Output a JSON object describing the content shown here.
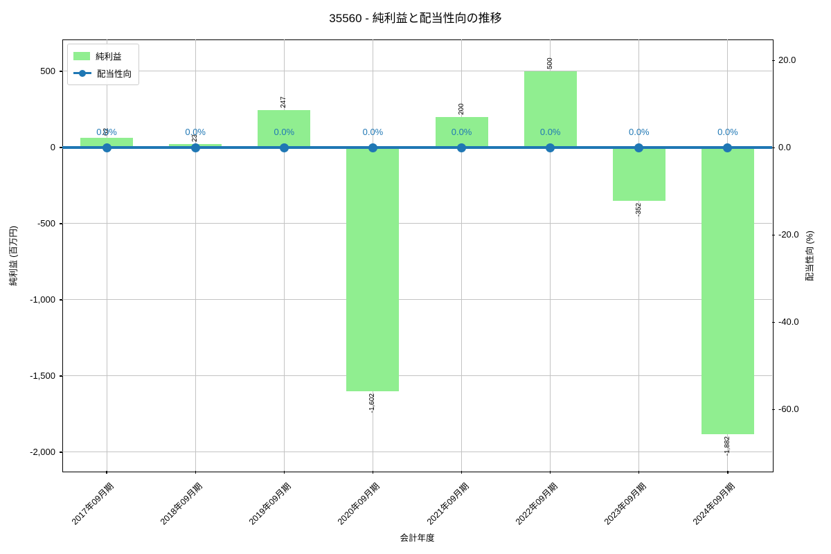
{
  "chart_data": {
    "type": "bar",
    "title": "35560 - 純利益と配当性向の推移",
    "xlabel": "会計年度",
    "ylabel_left": "純利益 (百万円)",
    "ylabel_right": "配当性向 (%)",
    "categories": [
      "2017年09月期",
      "2018年09月期",
      "2019年09月期",
      "2020年09月期",
      "2021年09月期",
      "2022年09月期",
      "2023年09月期",
      "2024年09月期"
    ],
    "series": [
      {
        "name": "純利益",
        "type": "bar",
        "yaxis": "left",
        "color": "#90ee90",
        "values": [
          62,
          23,
          247,
          -1602,
          200,
          500,
          -352,
          -1882
        ],
        "value_labels": [
          "62",
          "23",
          "247",
          "-1,602",
          "200",
          "500",
          "-352",
          "-1,882"
        ]
      },
      {
        "name": "配当性向",
        "type": "line",
        "yaxis": "right",
        "color": "#1f77b4",
        "values": [
          0,
          0,
          0,
          0,
          0,
          0,
          0,
          0
        ],
        "value_labels": [
          "0.0%",
          "0.0%",
          "0.0%",
          "0.0%",
          "0.0%",
          "0.0%",
          "0.0%",
          "0.0%"
        ]
      }
    ],
    "ylim_left": [
      -2123,
      709
    ],
    "ylim_right": [
      -74.1,
      24.8
    ],
    "yticks_left": {
      "values": [
        500,
        0,
        -500,
        -1000,
        -1500,
        -2000
      ],
      "labels": [
        "500",
        "0",
        "-500",
        "-1,000",
        "-1,500",
        "-2,000"
      ]
    },
    "yticks_right": {
      "values": [
        20,
        0,
        -20,
        -40,
        -60
      ],
      "labels": [
        "20.0",
        "0.0",
        "-20.0",
        "-40.0",
        "-60.0"
      ]
    },
    "grid": true,
    "legend_position": "upper left",
    "colors": {
      "bar": "#90ee90",
      "line": "#1f77b4",
      "grid": "#c3c3c3",
      "text": "#000000"
    }
  }
}
